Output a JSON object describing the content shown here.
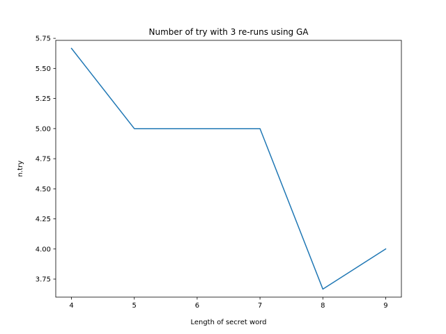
{
  "chart_data": {
    "type": "line",
    "title": "Number of try with 3 re-runs using GA",
    "xlabel": "Length of secret word",
    "ylabel": "n.try",
    "x": [
      4,
      5,
      7,
      8,
      9
    ],
    "series": [
      {
        "values": [
          5.6667,
          5.0,
          5.0,
          3.6667,
          4.0
        ],
        "color": "#1f77b4"
      }
    ],
    "xlim": [
      3.75,
      9.25
    ],
    "ylim": [
      3.6,
      5.7333
    ],
    "xticks": [
      4,
      5,
      6,
      7,
      8,
      9
    ],
    "yticks": [
      3.75,
      4.0,
      4.25,
      4.5,
      4.75,
      5.0,
      5.25,
      5.5,
      5.75
    ],
    "ytick_labels": [
      "3.75",
      "4.00",
      "4.25",
      "4.50",
      "4.75",
      "5.00",
      "5.25",
      "5.50",
      "5.75"
    ],
    "grid": false,
    "legend": false
  }
}
